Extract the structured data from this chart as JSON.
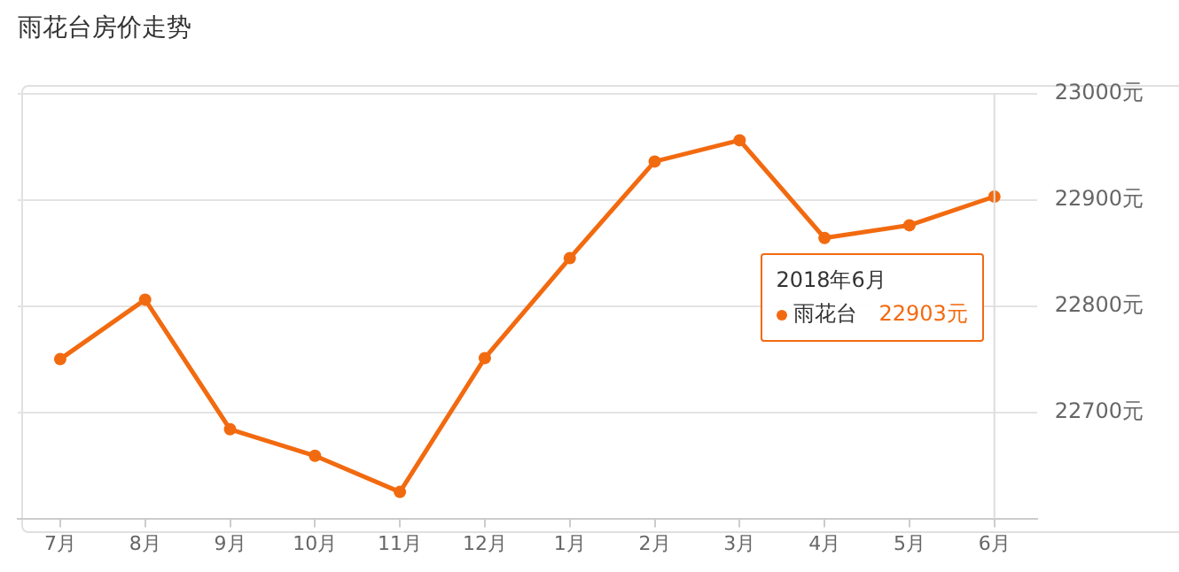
{
  "chart_data": {
    "type": "line",
    "title": "雨花台房价走势",
    "categories": [
      "7月",
      "8月",
      "9月",
      "10月",
      "11月",
      "12月",
      "1月",
      "2月",
      "3月",
      "4月",
      "5月",
      "6月"
    ],
    "series": [
      {
        "name": "雨花台",
        "color": "#f26a10",
        "values": [
          22750,
          22806,
          22684,
          22659,
          22625,
          22751,
          22845,
          22936,
          22956,
          22864,
          22876,
          22903
        ]
      }
    ],
    "ylim": [
      22600,
      23000
    ],
    "yticks": [
      {
        "value": 22600,
        "label": null
      },
      {
        "value": 22700,
        "label": "22700元"
      },
      {
        "value": 22800,
        "label": "22800元"
      },
      {
        "value": 22900,
        "label": "22900元"
      },
      {
        "value": 23000,
        "label": "23000元"
      }
    ],
    "grid": "y",
    "legend": "right",
    "marker": "circle",
    "line_style": "solid",
    "ref_lines": [
      {
        "axis": "x",
        "value": "6月",
        "color": "#dddddd"
      }
    ],
    "annotations": [
      "2018年6月",
      "22903元"
    ]
  }
}
